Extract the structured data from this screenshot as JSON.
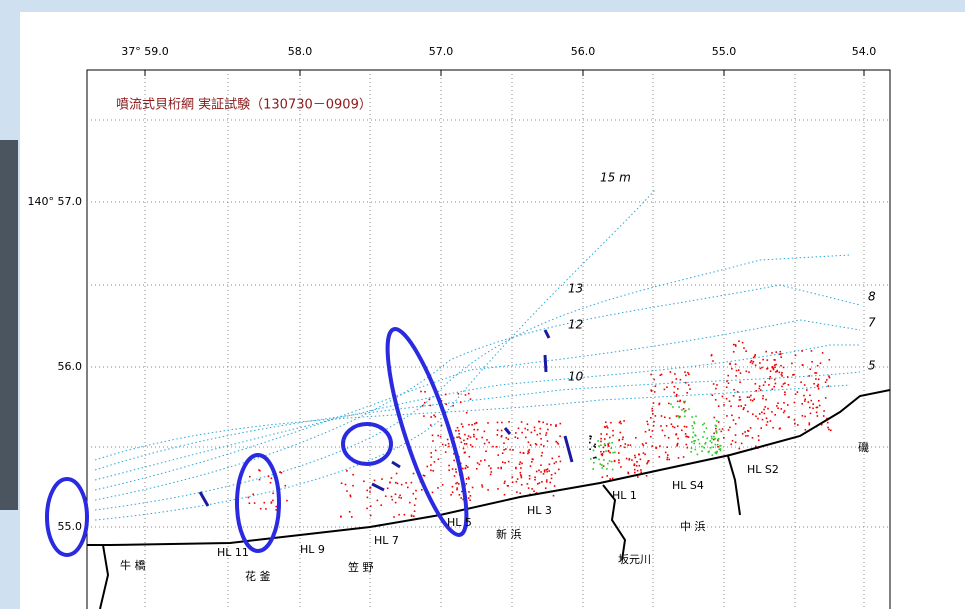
{
  "map": {
    "title": "噴流式貝桁網 実証試験（130730－0909）",
    "top_labels": [
      "37° 59.0",
      "58.0",
      "57.0",
      "56.0",
      "55.0",
      "54.0"
    ],
    "left_labels": [
      "140° 57.0",
      "56.0",
      "55.0"
    ],
    "depth_labels": [
      "15 m",
      "13",
      "12",
      "10",
      "8",
      "7",
      "5"
    ],
    "places": [
      "牛 橋",
      "花 釜",
      "笠 野",
      "新 浜",
      "中 浜",
      "坂元川",
      "磯"
    ],
    "structures": [
      "HL 11",
      "HL 9",
      "HL 7",
      "HL 5",
      "HL 3",
      "HL 1",
      "HL S4",
      "HL S2"
    ]
  }
}
